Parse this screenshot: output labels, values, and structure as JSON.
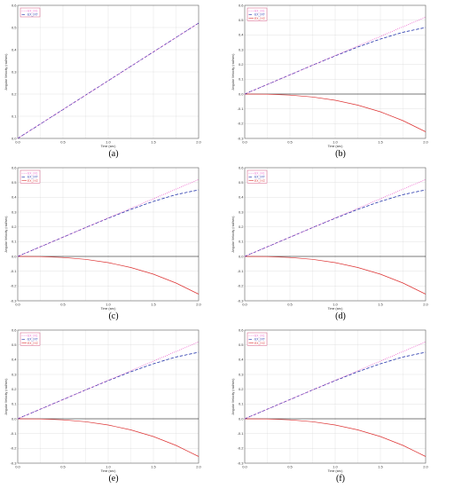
{
  "figure": {
    "panels_per_row": 2
  },
  "colors": {
    "series1": "#ee66cc",
    "series2": "#2233aa",
    "series3": "#dd3333",
    "grid": "#d9d9d9",
    "frame": "#666666",
    "zero_line": "#000000",
    "legend_border": "#cc3366"
  },
  "chart_data": [
    {
      "type": "line",
      "panel_label": "a",
      "caption": "(a)",
      "title": "",
      "xlabel": "Time (sec)",
      "ylabel": "Angular Velocity (rad/sec)",
      "xlim": [
        0,
        2
      ],
      "ylim": [
        0,
        0.6
      ],
      "xticks": [
        0,
        0.5,
        1,
        1.5,
        2
      ],
      "xtick_labels": [
        "0.0",
        "0.5",
        "1.0",
        "1.5",
        "2.0"
      ],
      "yticks": [
        0,
        0.1,
        0.2,
        0.3,
        0.4,
        0.5,
        0.6
      ],
      "ytick_labels": [
        "0.0",
        "0.1",
        "0.2",
        "0.3",
        "0.4",
        "0.5",
        "0.6"
      ],
      "grid": true,
      "legend_position": "top-left",
      "series": [
        {
          "name": "EX_IX1",
          "style": "dotted",
          "color": "#ee66cc",
          "x": [
            0,
            0.5,
            1,
            1.5,
            2
          ],
          "values": [
            0,
            0.13,
            0.26,
            0.39,
            0.52
          ]
        },
        {
          "name": "EX_IXT",
          "style": "dashed",
          "color": "#2233aa",
          "x": [
            0,
            0.5,
            1,
            1.5,
            2
          ],
          "values": [
            0,
            0.13,
            0.26,
            0.39,
            0.52
          ]
        }
      ]
    },
    {
      "type": "line",
      "panel_label": "b",
      "caption": "(b)",
      "title": "",
      "xlabel": "Time (sec)",
      "ylabel": "Angular Velocity (rad/sec)",
      "xlim": [
        0,
        2
      ],
      "ylim": [
        -0.3,
        0.6
      ],
      "xticks": [
        0,
        0.5,
        1,
        1.5,
        2
      ],
      "xtick_labels": [
        "0.0",
        "0.5",
        "1.0",
        "1.5",
        "2.0"
      ],
      "yticks": [
        -0.3,
        -0.2,
        -0.1,
        0,
        0.1,
        0.2,
        0.3,
        0.4,
        0.5,
        0.6
      ],
      "ytick_labels": [
        "-0.3",
        "-0.2",
        "-0.1",
        "0.0",
        "0.1",
        "0.2",
        "0.3",
        "0.4",
        "0.5",
        "0.6"
      ],
      "grid": true,
      "legend_position": "top-left",
      "series": [
        {
          "name": "EX_IX1",
          "style": "dotted",
          "color": "#ee66cc",
          "x": [
            0,
            0.5,
            1,
            1.5,
            2
          ],
          "values": [
            0,
            0.13,
            0.26,
            0.39,
            0.52
          ]
        },
        {
          "name": "EX_IXT",
          "style": "dashed",
          "color": "#2233aa",
          "x": [
            0,
            0.25,
            0.5,
            0.75,
            1,
            1.25,
            1.5,
            1.75,
            2
          ],
          "values": [
            0,
            0.065,
            0.13,
            0.195,
            0.258,
            0.318,
            0.372,
            0.418,
            0.45
          ]
        },
        {
          "name": "EX_IYZ",
          "style": "solid",
          "color": "#dd3333",
          "x": [
            0,
            0.25,
            0.5,
            0.75,
            1,
            1.25,
            1.5,
            1.75,
            2
          ],
          "values": [
            0,
            -0.001,
            -0.007,
            -0.02,
            -0.042,
            -0.075,
            -0.12,
            -0.18,
            -0.255
          ]
        }
      ]
    },
    {
      "type": "line",
      "panel_label": "c",
      "caption": "(c)",
      "title": "",
      "xlabel": "Time (sec)",
      "ylabel": "Angular Velocity (rad/sec)",
      "xlim": [
        0,
        2
      ],
      "ylim": [
        -0.3,
        0.6
      ],
      "xticks": [
        0,
        0.5,
        1,
        1.5,
        2
      ],
      "xtick_labels": [
        "0.0",
        "0.5",
        "1.0",
        "1.5",
        "2.0"
      ],
      "yticks": [
        -0.3,
        -0.2,
        -0.1,
        0,
        0.1,
        0.2,
        0.3,
        0.4,
        0.5,
        0.6
      ],
      "ytick_labels": [
        "-0.3",
        "-0.2",
        "-0.1",
        "0.0",
        "0.1",
        "0.2",
        "0.3",
        "0.4",
        "0.5",
        "0.6"
      ],
      "grid": true,
      "legend_position": "top-left",
      "series": [
        {
          "name": "EX_IX1",
          "style": "dotted",
          "color": "#ee66cc",
          "x": [
            0,
            0.5,
            1,
            1.5,
            2
          ],
          "values": [
            0,
            0.13,
            0.26,
            0.39,
            0.52
          ]
        },
        {
          "name": "EX_IXT",
          "style": "dashed",
          "color": "#2233aa",
          "x": [
            0,
            0.25,
            0.5,
            0.75,
            1,
            1.25,
            1.5,
            1.75,
            2
          ],
          "values": [
            0,
            0.065,
            0.13,
            0.195,
            0.258,
            0.318,
            0.372,
            0.418,
            0.45
          ]
        },
        {
          "name": "EX_IYZ",
          "style": "solid",
          "color": "#dd3333",
          "x": [
            0,
            0.25,
            0.5,
            0.75,
            1,
            1.25,
            1.5,
            1.75,
            2
          ],
          "values": [
            0,
            -0.001,
            -0.007,
            -0.02,
            -0.042,
            -0.075,
            -0.12,
            -0.18,
            -0.255
          ]
        }
      ]
    },
    {
      "type": "line",
      "panel_label": "d",
      "caption": "(d)",
      "title": "",
      "xlabel": "Time (sec)",
      "ylabel": "Angular Velocity (rad/sec)",
      "xlim": [
        0,
        2
      ],
      "ylim": [
        -0.3,
        0.6
      ],
      "xticks": [
        0,
        0.5,
        1,
        1.5,
        2
      ],
      "xtick_labels": [
        "0.0",
        "0.5",
        "1.0",
        "1.5",
        "2.0"
      ],
      "yticks": [
        -0.3,
        -0.2,
        -0.1,
        0,
        0.1,
        0.2,
        0.3,
        0.4,
        0.5,
        0.6
      ],
      "ytick_labels": [
        "-0.3",
        "-0.2",
        "-0.1",
        "0.0",
        "0.1",
        "0.2",
        "0.3",
        "0.4",
        "0.5",
        "0.6"
      ],
      "grid": true,
      "legend_position": "top-left",
      "series": [
        {
          "name": "EX_IX1",
          "style": "dotted",
          "color": "#ee66cc",
          "x": [
            0,
            0.5,
            1,
            1.5,
            2
          ],
          "values": [
            0,
            0.13,
            0.26,
            0.39,
            0.52
          ]
        },
        {
          "name": "EX_IXT",
          "style": "dashed",
          "color": "#2233aa",
          "x": [
            0,
            0.25,
            0.5,
            0.75,
            1,
            1.25,
            1.5,
            1.75,
            2
          ],
          "values": [
            0,
            0.065,
            0.13,
            0.195,
            0.258,
            0.318,
            0.372,
            0.418,
            0.45
          ]
        },
        {
          "name": "EX_IYZ",
          "style": "solid",
          "color": "#dd3333",
          "x": [
            0,
            0.25,
            0.5,
            0.75,
            1,
            1.25,
            1.5,
            1.75,
            2
          ],
          "values": [
            0,
            -0.001,
            -0.007,
            -0.02,
            -0.042,
            -0.075,
            -0.12,
            -0.18,
            -0.255
          ]
        }
      ]
    },
    {
      "type": "line",
      "panel_label": "e",
      "caption": "(e)",
      "title": "",
      "xlabel": "Time (sec)",
      "ylabel": "Angular Velocity (rad/sec)",
      "xlim": [
        0,
        2
      ],
      "ylim": [
        -0.3,
        0.6
      ],
      "xticks": [
        0,
        0.5,
        1,
        1.5,
        2
      ],
      "xtick_labels": [
        "0.0",
        "0.5",
        "1.0",
        "1.5",
        "2.0"
      ],
      "yticks": [
        -0.3,
        -0.2,
        -0.1,
        0,
        0.1,
        0.2,
        0.3,
        0.4,
        0.5,
        0.6
      ],
      "ytick_labels": [
        "-0.3",
        "-0.2",
        "-0.1",
        "0.0",
        "0.1",
        "0.2",
        "0.3",
        "0.4",
        "0.5",
        "0.6"
      ],
      "grid": true,
      "legend_position": "top-left",
      "series": [
        {
          "name": "EX_IX1",
          "style": "dotted",
          "color": "#ee66cc",
          "x": [
            0,
            0.5,
            1,
            1.5,
            2
          ],
          "values": [
            0,
            0.13,
            0.26,
            0.39,
            0.52
          ]
        },
        {
          "name": "EX_IXT",
          "style": "dashed",
          "color": "#2233aa",
          "x": [
            0,
            0.25,
            0.5,
            0.75,
            1,
            1.25,
            1.5,
            1.75,
            2
          ],
          "values": [
            0,
            0.065,
            0.13,
            0.195,
            0.258,
            0.318,
            0.372,
            0.418,
            0.45
          ]
        },
        {
          "name": "EX_IYZ",
          "style": "solid",
          "color": "#dd3333",
          "x": [
            0,
            0.25,
            0.5,
            0.75,
            1,
            1.25,
            1.5,
            1.75,
            2
          ],
          "values": [
            0,
            -0.001,
            -0.007,
            -0.02,
            -0.042,
            -0.075,
            -0.12,
            -0.18,
            -0.255
          ]
        }
      ]
    },
    {
      "type": "line",
      "panel_label": "f",
      "caption": "(f)",
      "title": "",
      "xlabel": "Time (sec)",
      "ylabel": "Angular Velocity (rad/sec)",
      "xlim": [
        0,
        2
      ],
      "ylim": [
        -0.3,
        0.6
      ],
      "xticks": [
        0,
        0.5,
        1,
        1.5,
        2
      ],
      "xtick_labels": [
        "0.0",
        "0.5",
        "1.0",
        "1.5",
        "2.0"
      ],
      "yticks": [
        -0.3,
        -0.2,
        -0.1,
        0,
        0.1,
        0.2,
        0.3,
        0.4,
        0.5,
        0.6
      ],
      "ytick_labels": [
        "-0.3",
        "-0.2",
        "-0.1",
        "0.0",
        "0.1",
        "0.2",
        "0.3",
        "0.4",
        "0.5",
        "0.6"
      ],
      "grid": true,
      "legend_position": "top-left",
      "series": [
        {
          "name": "EX_IX1",
          "style": "dotted",
          "color": "#ee66cc",
          "x": [
            0,
            0.5,
            1,
            1.5,
            2
          ],
          "values": [
            0,
            0.13,
            0.26,
            0.39,
            0.52
          ]
        },
        {
          "name": "EX_IXT",
          "style": "dashed",
          "color": "#2233aa",
          "x": [
            0,
            0.25,
            0.5,
            0.75,
            1,
            1.25,
            1.5,
            1.75,
            2
          ],
          "values": [
            0,
            0.065,
            0.13,
            0.195,
            0.258,
            0.318,
            0.372,
            0.418,
            0.45
          ]
        },
        {
          "name": "EX_IYZ",
          "style": "solid",
          "color": "#dd3333",
          "x": [
            0,
            0.25,
            0.5,
            0.75,
            1,
            1.25,
            1.5,
            1.75,
            2
          ],
          "values": [
            0,
            -0.001,
            -0.007,
            -0.02,
            -0.042,
            -0.075,
            -0.12,
            -0.18,
            -0.255
          ]
        }
      ]
    }
  ]
}
